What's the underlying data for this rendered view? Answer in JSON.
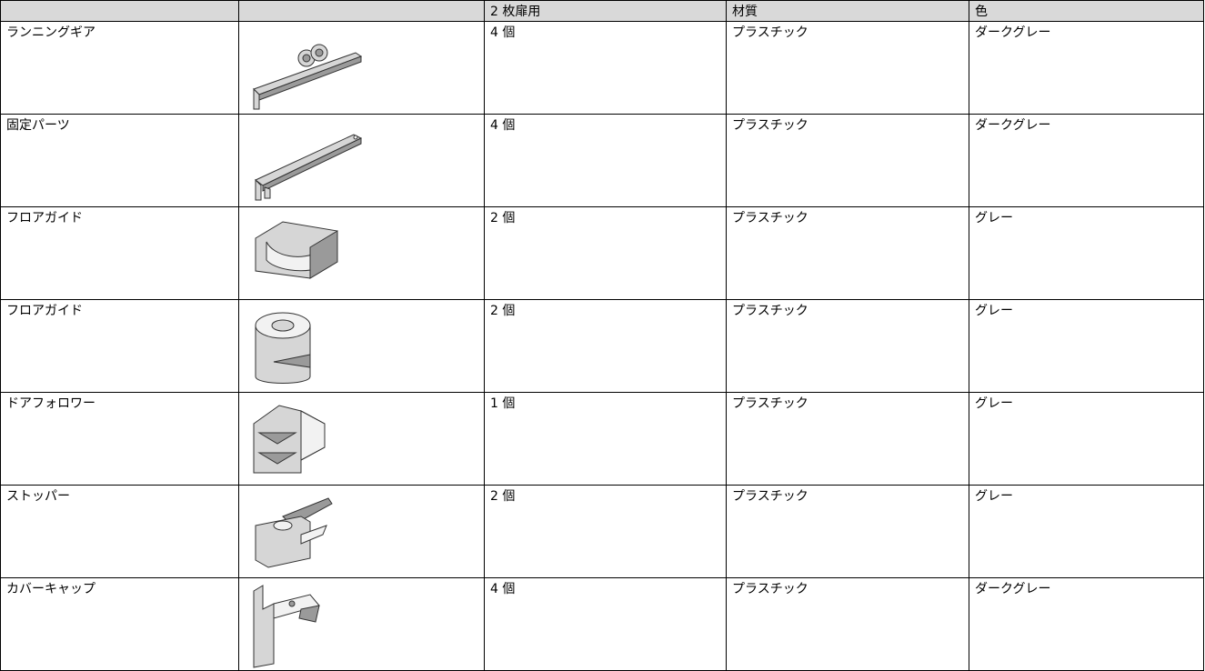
{
  "table": {
    "header": [
      "2 枚扉用",
      "材質",
      "色"
    ],
    "rows": [
      [
        "ランニングギア",
        "4 個",
        "プラスチック",
        "ダークグレー"
      ],
      [
        "固定パーツ",
        "4 個",
        "プラスチック",
        "ダークグレー"
      ],
      [
        "フロアガイド",
        "2 個",
        "プラスチック",
        "グレー"
      ],
      [
        "フロアガイド",
        "2 個",
        "プラスチック",
        "グレー"
      ],
      [
        "ドアフォロワー",
        "1 個",
        "プラスチック",
        "グレー"
      ],
      [
        "ストッパー",
        "2 個",
        "プラスチック",
        "グレー"
      ],
      [
        "カバーキャップ",
        "4 個",
        "プラスチック",
        "ダークグレー"
      ]
    ]
  }
}
